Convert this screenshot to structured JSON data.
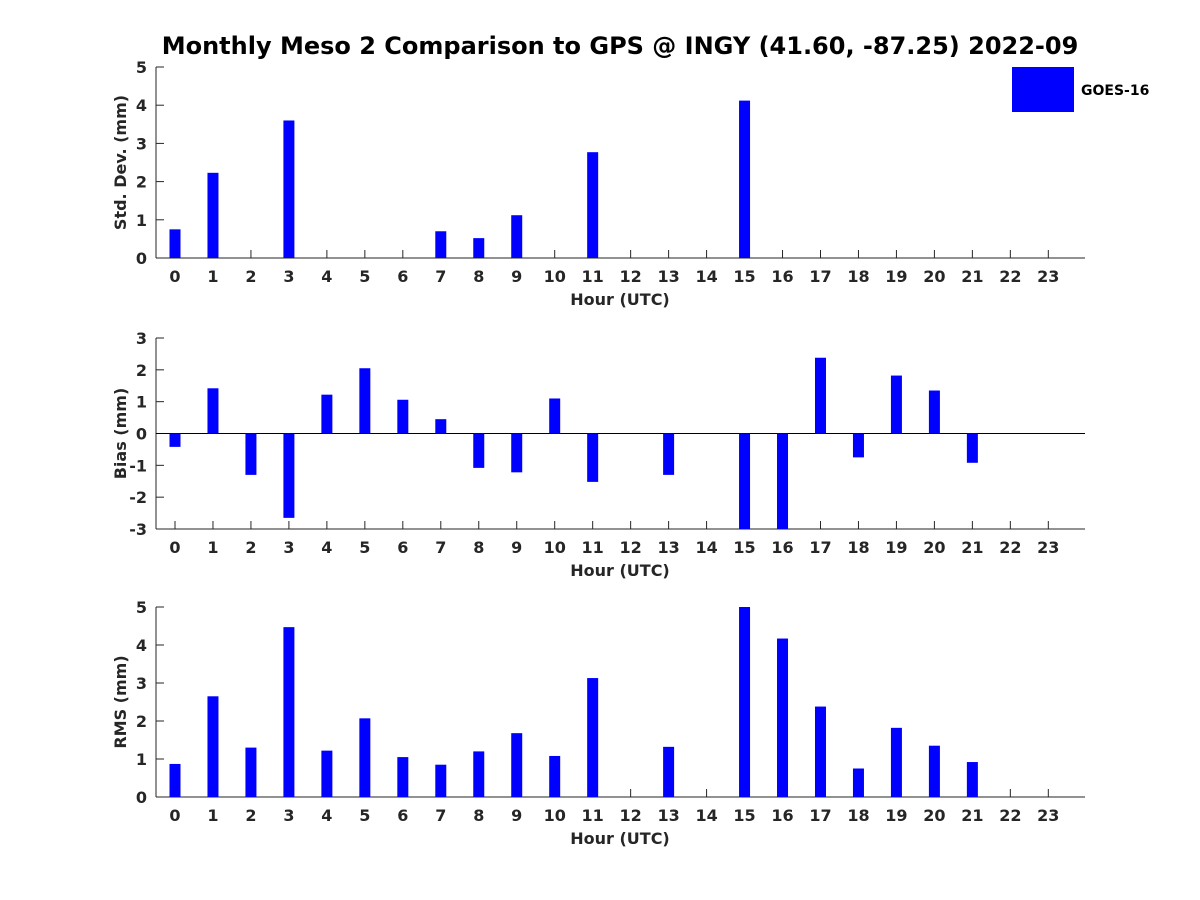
{
  "chart_data": {
    "title": "Monthly Meso 2 Comparison to GPS @ INGY (41.60, -87.25) 2022-09",
    "legend": {
      "entries": [
        "GOES-16"
      ],
      "placement": "top-right"
    },
    "colors": {
      "bar": "#0000ff",
      "axis": "#262626"
    },
    "panels": [
      {
        "type": "bar",
        "xlabel": "Hour (UTC)",
        "ylabel": "Std. Dev. (mm)",
        "ylim": [
          0,
          5
        ],
        "yticks": [
          "0",
          "1",
          "2",
          "3",
          "4",
          "5"
        ],
        "categories": [
          "0",
          "1",
          "2",
          "3",
          "4",
          "5",
          "6",
          "7",
          "8",
          "9",
          "10",
          "11",
          "12",
          "13",
          "14",
          "15",
          "16",
          "17",
          "18",
          "19",
          "20",
          "21",
          "22",
          "23"
        ],
        "series": [
          {
            "name": "GOES-16",
            "values": [
              0.75,
              2.23,
              null,
              3.6,
              null,
              null,
              null,
              0.7,
              0.52,
              1.12,
              null,
              2.77,
              null,
              null,
              null,
              4.12,
              null,
              null,
              null,
              null,
              null,
              null,
              null,
              null
            ]
          }
        ]
      },
      {
        "type": "bar",
        "xlabel": "Hour (UTC)",
        "ylabel": "Bias (mm)",
        "ylim": [
          -3,
          3
        ],
        "yticks": [
          "-3",
          "-2",
          "-1",
          "0",
          "1",
          "2",
          "3"
        ],
        "categories": [
          "0",
          "1",
          "2",
          "3",
          "4",
          "5",
          "6",
          "7",
          "8",
          "9",
          "10",
          "11",
          "12",
          "13",
          "14",
          "15",
          "16",
          "17",
          "18",
          "19",
          "20",
          "21",
          "22",
          "23"
        ],
        "series": [
          {
            "name": "GOES-16",
            "values": [
              -0.42,
              1.42,
              -1.3,
              -2.65,
              1.22,
              2.05,
              1.06,
              0.45,
              -1.08,
              -1.22,
              1.1,
              -1.52,
              null,
              -1.3,
              null,
              -3.0,
              -3.0,
              2.38,
              -0.75,
              1.82,
              1.35,
              -0.92,
              null,
              null
            ]
          }
        ]
      },
      {
        "type": "bar",
        "xlabel": "Hour (UTC)",
        "ylabel": "RMS (mm)",
        "ylim": [
          0,
          5
        ],
        "yticks": [
          "0",
          "1",
          "2",
          "3",
          "4",
          "5"
        ],
        "categories": [
          "0",
          "1",
          "2",
          "3",
          "4",
          "5",
          "6",
          "7",
          "8",
          "9",
          "10",
          "11",
          "12",
          "13",
          "14",
          "15",
          "16",
          "17",
          "18",
          "19",
          "20",
          "21",
          "22",
          "23"
        ],
        "series": [
          {
            "name": "GOES-16",
            "values": [
              0.87,
              2.65,
              1.3,
              4.47,
              1.22,
              2.07,
              1.05,
              0.85,
              1.2,
              1.68,
              1.08,
              3.13,
              null,
              1.32,
              null,
              5.0,
              4.17,
              2.38,
              0.75,
              1.82,
              1.35,
              0.92,
              null,
              null
            ]
          }
        ]
      }
    ]
  }
}
